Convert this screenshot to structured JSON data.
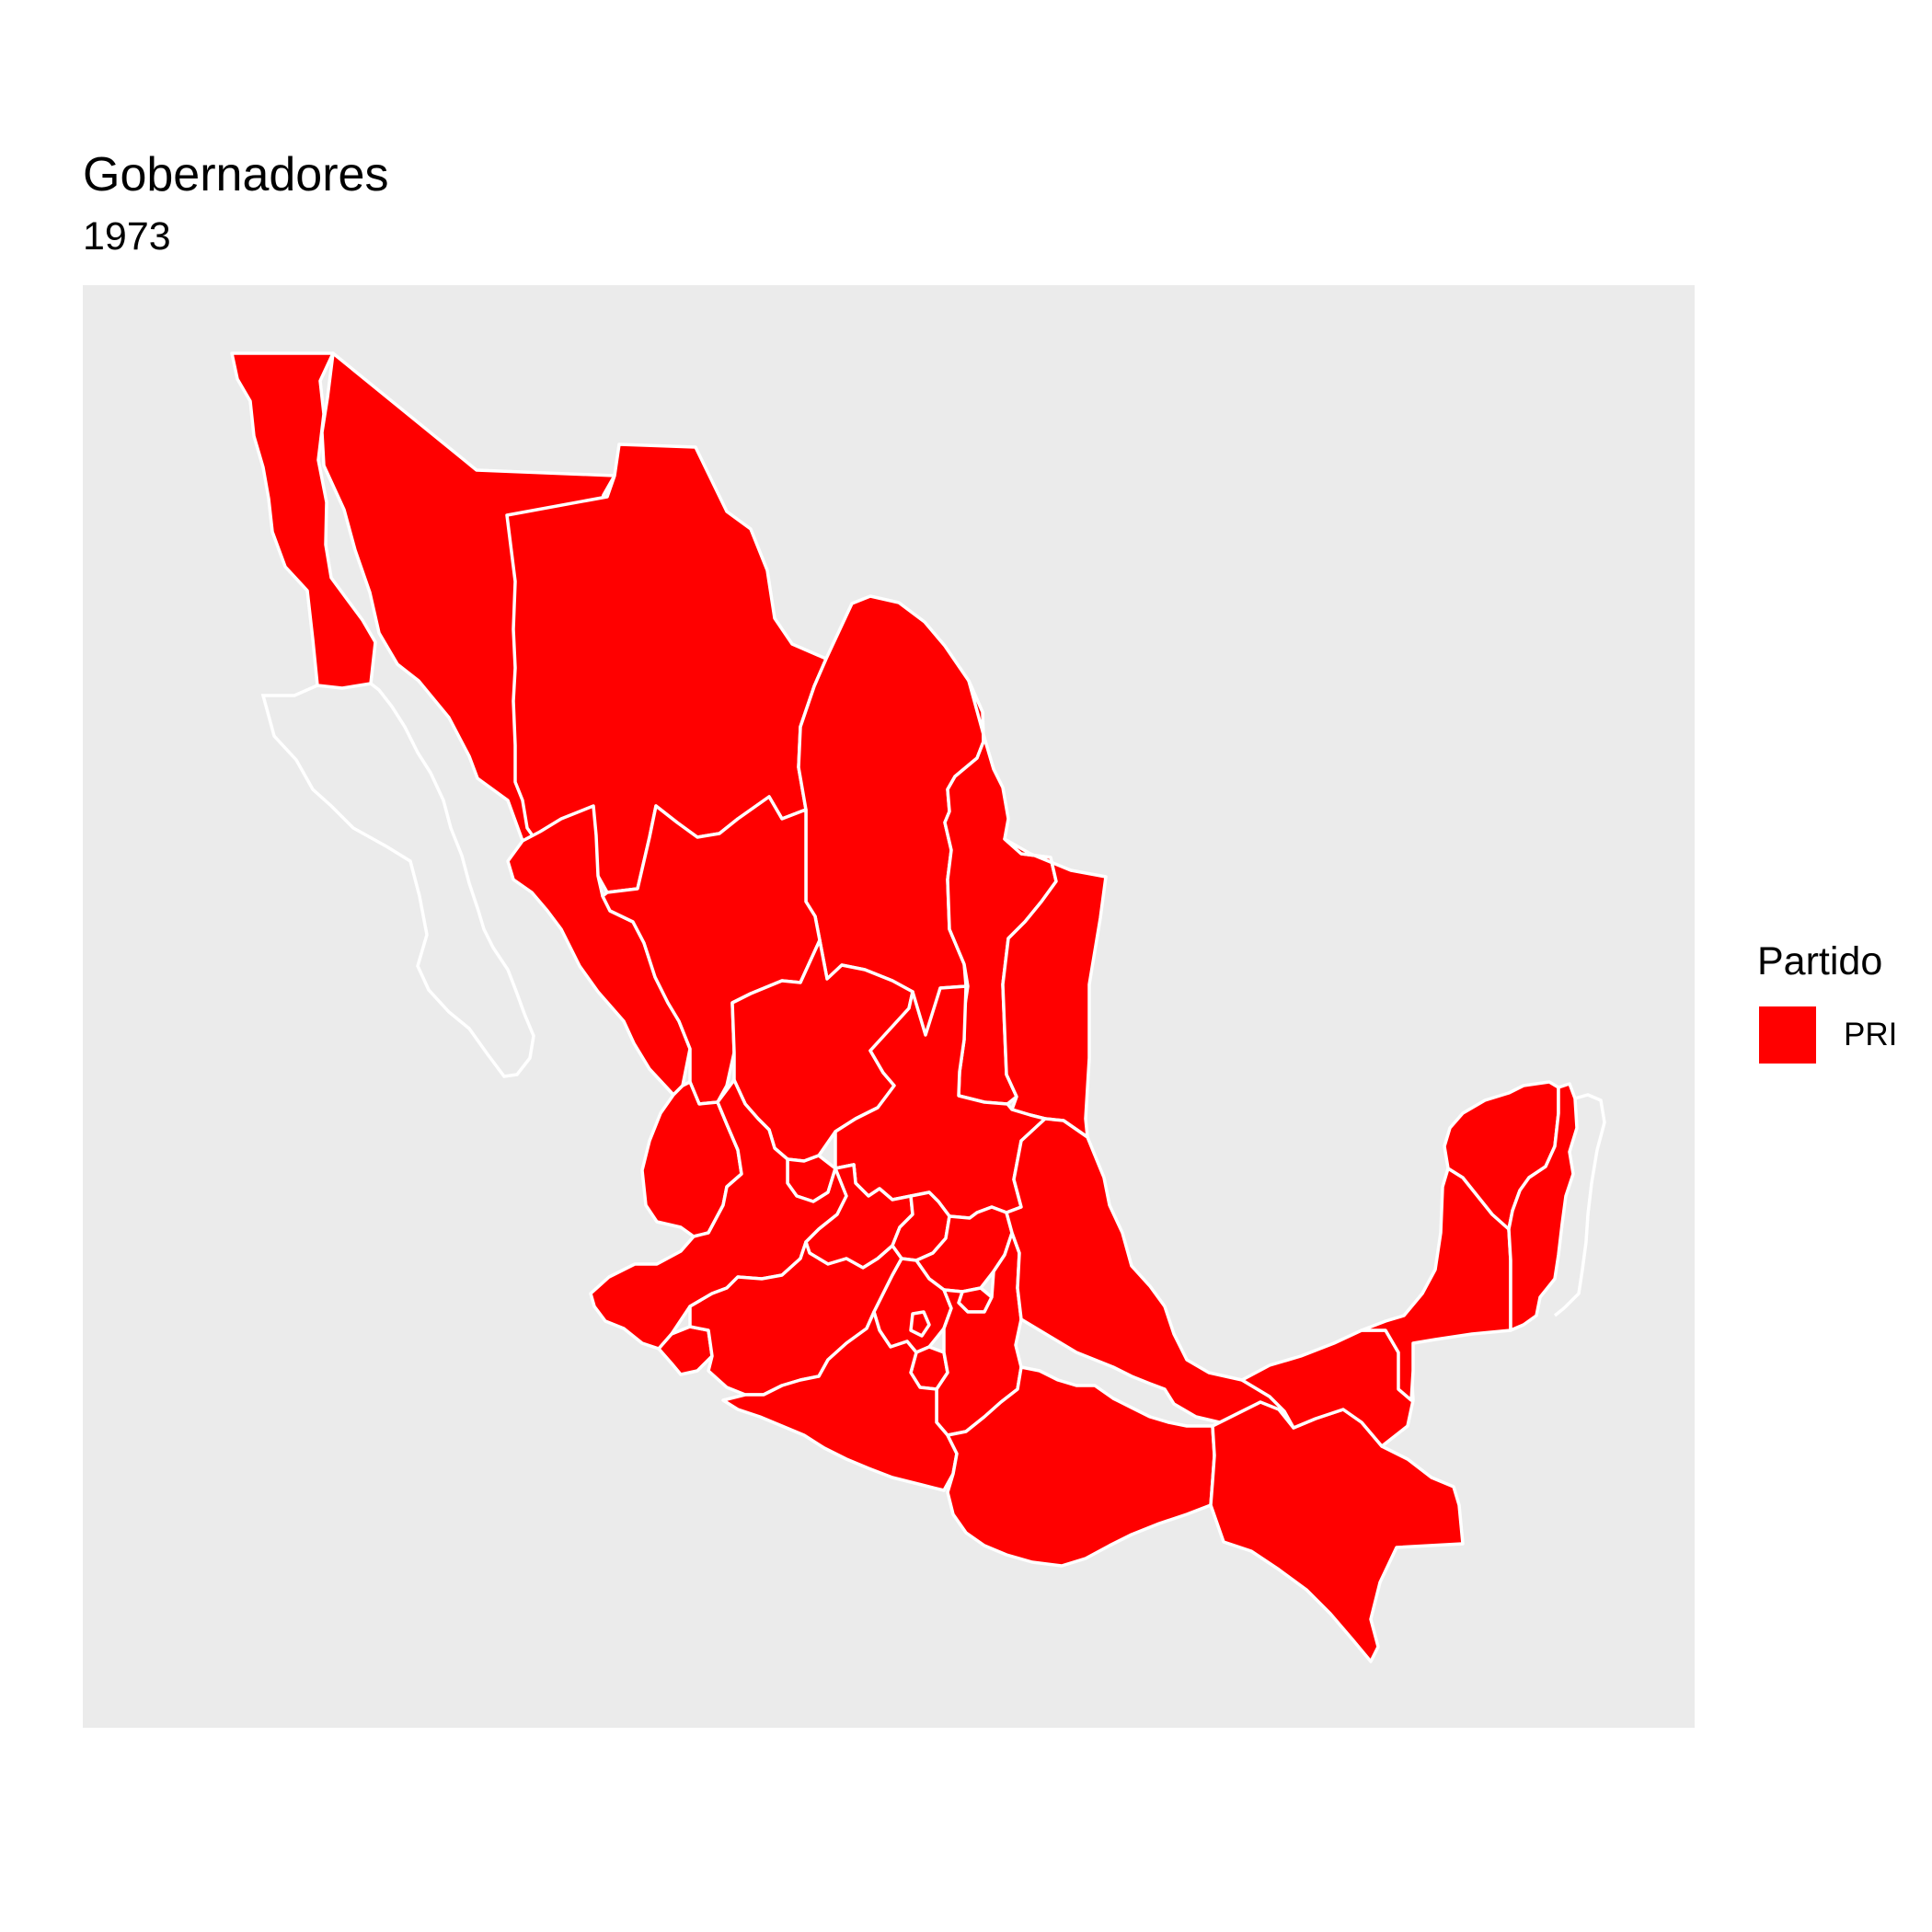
{
  "title": "Gobernadores",
  "subtitle": "1973",
  "map": {
    "country": "México",
    "panel_background": "#ebebeb",
    "border_color": "#ffffff",
    "fill_by": "Partido"
  },
  "legend": {
    "title": "Partido",
    "placement": "right",
    "items": [
      {
        "label": "PRI",
        "color": "#ff0000"
      }
    ]
  }
}
